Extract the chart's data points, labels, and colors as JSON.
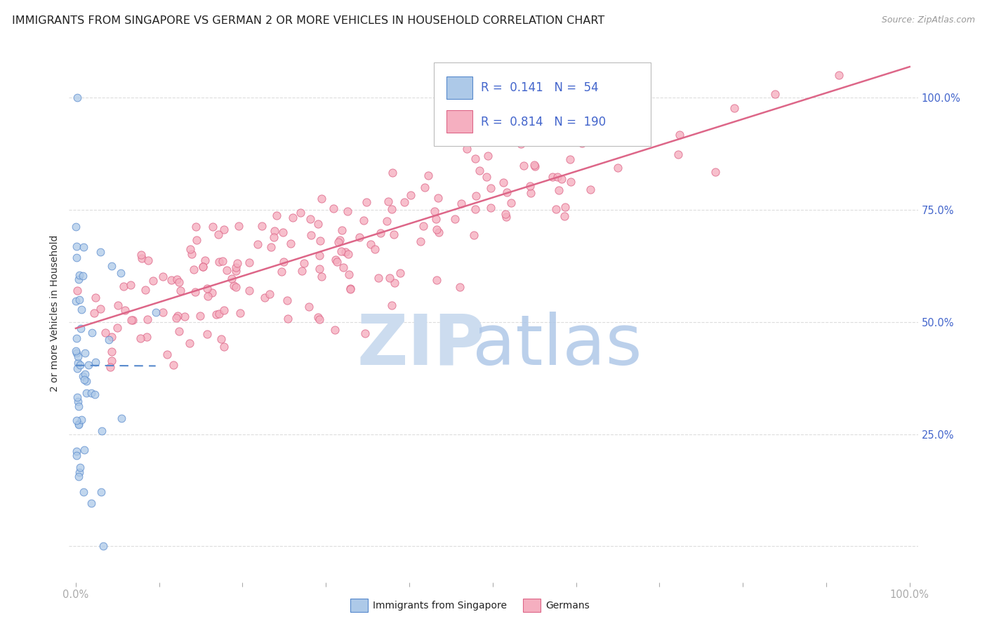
{
  "title": "IMMIGRANTS FROM SINGAPORE VS GERMAN 2 OR MORE VEHICLES IN HOUSEHOLD CORRELATION CHART",
  "source": "Source: ZipAtlas.com",
  "ylabel": "2 or more Vehicles in Household",
  "legend_R1": "0.141",
  "legend_N1": "54",
  "legend_R2": "0.814",
  "legend_N2": "190",
  "color_singapore": "#adc9e8",
  "color_german": "#f5afc0",
  "color_singapore_line": "#5588cc",
  "color_german_line": "#dd6688",
  "color_axis_labels": "#4466cc",
  "watermark_zip_color": "#ccdcef",
  "watermark_atlas_color": "#b0c8e8",
  "background_color": "#ffffff",
  "grid_color": "#dddddd",
  "title_fontsize": 11.5,
  "axis_tick_fontsize": 10.5,
  "legend_fontsize": 12
}
